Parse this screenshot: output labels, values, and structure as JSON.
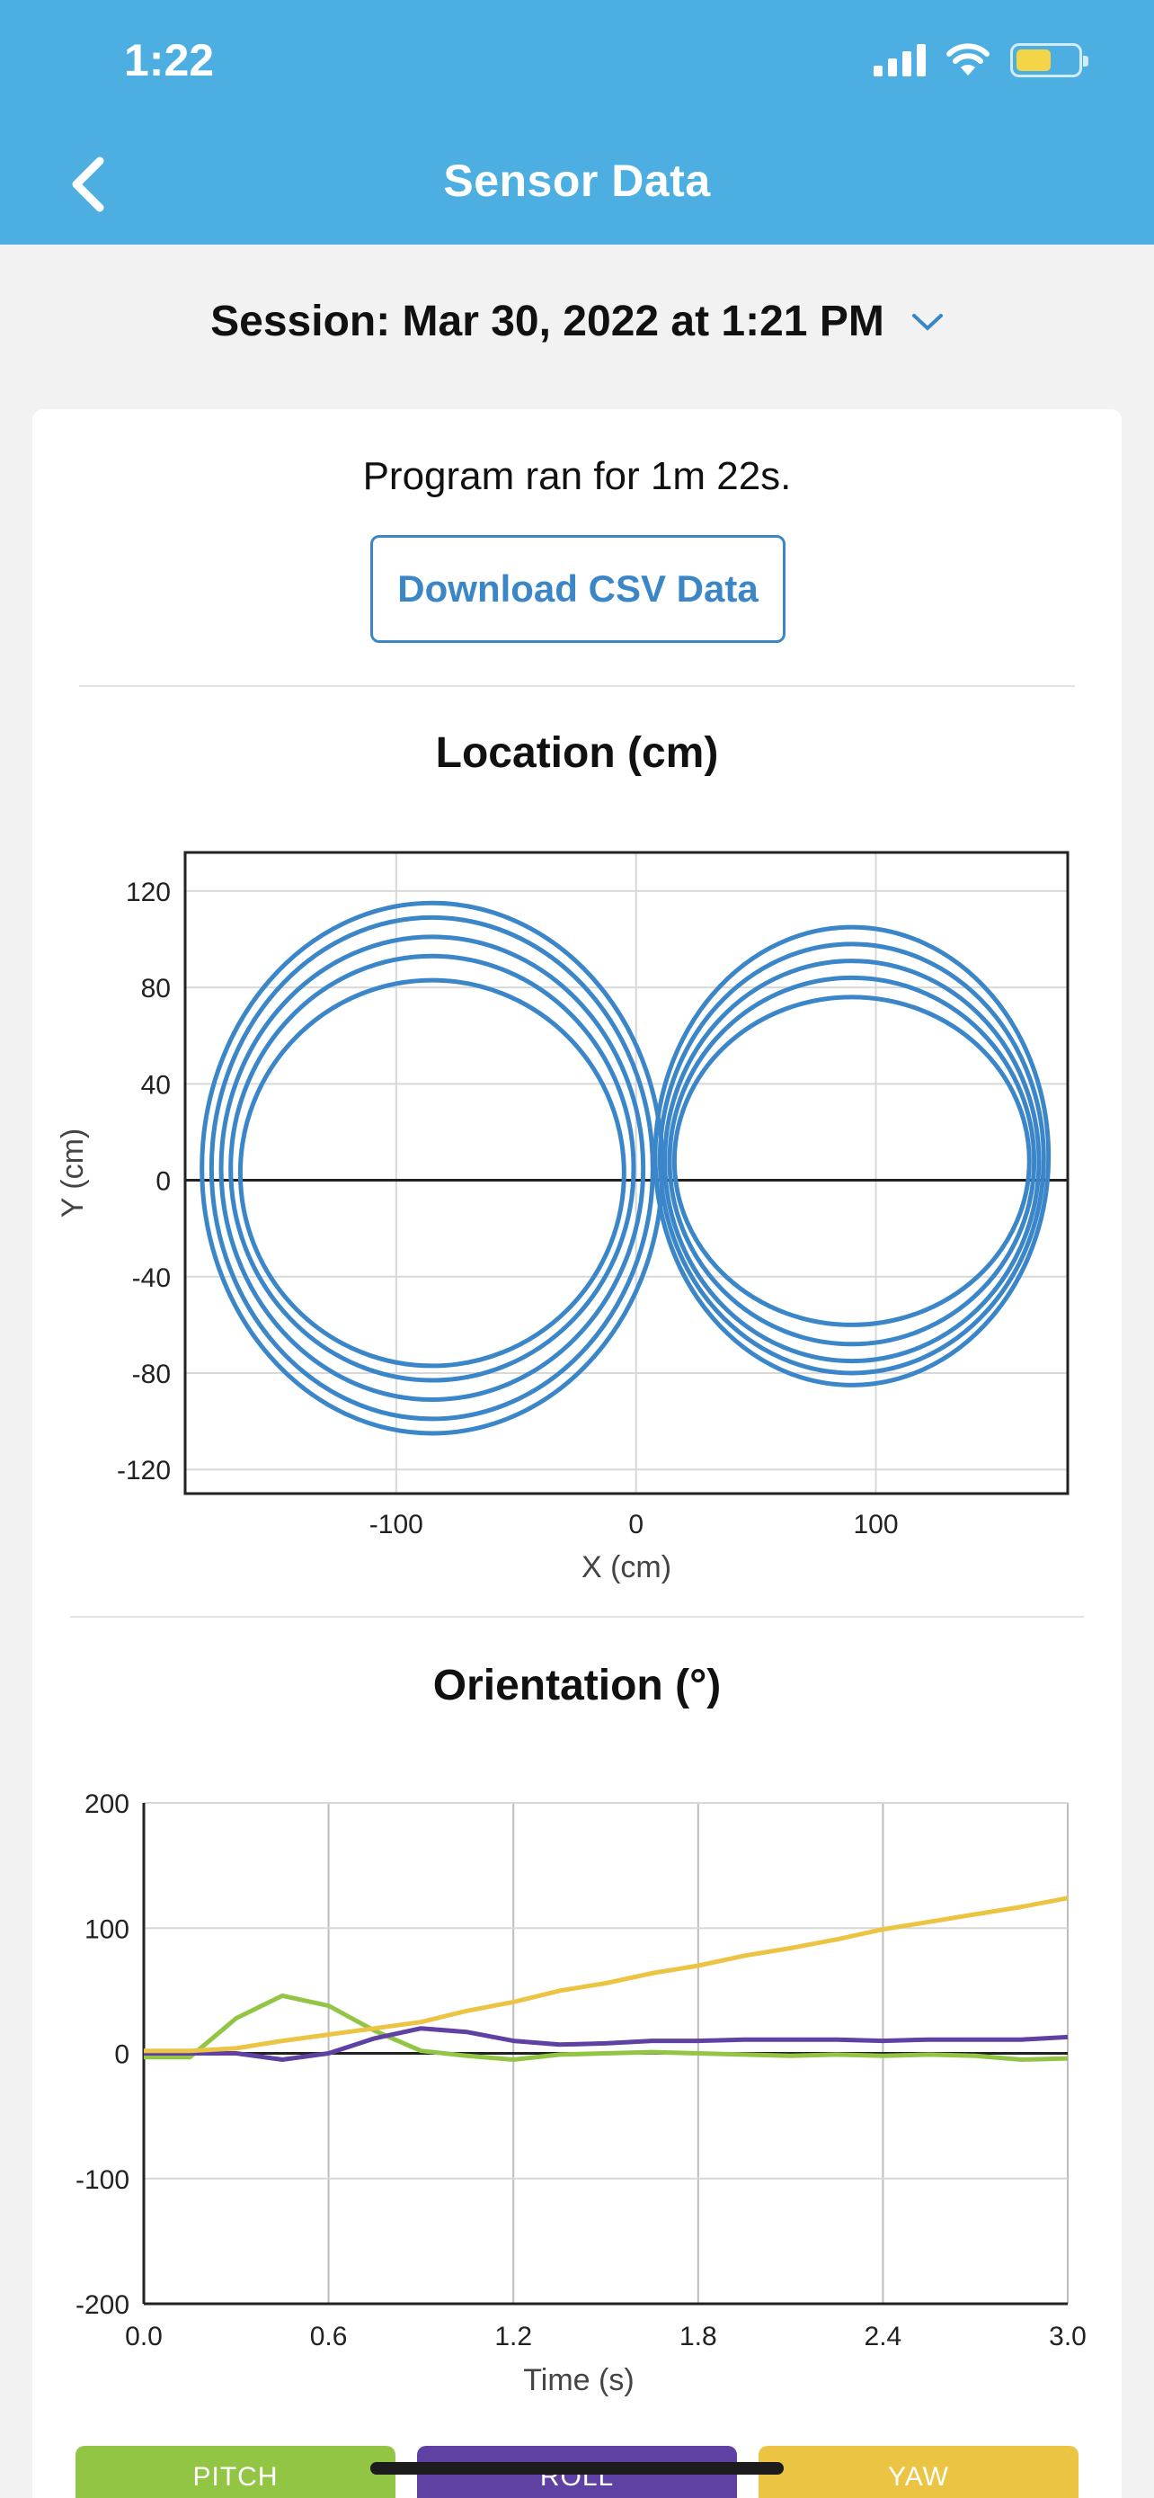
{
  "status_bar": {
    "time": "1:22"
  },
  "header": {
    "title": "Sensor Data"
  },
  "session": {
    "label": "Session: Mar 30, 2022 at 1:21 PM"
  },
  "summary": {
    "ran_text": "Program ran for 1m 22s."
  },
  "download_button": {
    "label": "Download CSV Data"
  },
  "colors": {
    "header": "#4dafe1",
    "location_line": "#3a86c8",
    "pitch": "#93c545",
    "roll": "#5e41a2",
    "yaw": "#ecc444"
  },
  "chart_data": [
    {
      "type": "line",
      "title": "Location (cm)",
      "xlabel": "X (cm)",
      "ylabel": "Y (cm)",
      "xlim": [
        -188,
        180
      ],
      "ylim": [
        -130,
        136
      ],
      "xticks": [
        -100,
        0,
        100
      ],
      "yticks": [
        120,
        80,
        40,
        0,
        -40,
        -80,
        -120
      ],
      "grid": true,
      "series": [
        {
          "cx": -85,
          "cy": 5,
          "rx": 96,
          "ry": 110
        },
        {
          "cx": -85,
          "cy": 5,
          "rx": 92,
          "ry": 104
        },
        {
          "cx": -85,
          "cy": 5,
          "rx": 88,
          "ry": 96
        },
        {
          "cx": -85,
          "cy": 5,
          "rx": 84,
          "ry": 88
        },
        {
          "cx": -85,
          "cy": 3,
          "rx": 80,
          "ry": 80
        },
        {
          "cx": 90,
          "cy": 10,
          "rx": 82,
          "ry": 95
        },
        {
          "cx": 90,
          "cy": 9,
          "rx": 80,
          "ry": 89
        },
        {
          "cx": 90,
          "cy": 8,
          "rx": 78,
          "ry": 83
        },
        {
          "cx": 90,
          "cy": 8,
          "rx": 76,
          "ry": 76
        },
        {
          "cx": 90,
          "cy": 8,
          "rx": 74,
          "ry": 68
        }
      ]
    },
    {
      "type": "line",
      "title": "Orientation (°)",
      "xlabel": "Time (s)",
      "ylabel": "",
      "xlim": [
        0,
        3.0
      ],
      "ylim": [
        -200,
        200
      ],
      "xticks": [
        "0.0",
        "0.6",
        "1.2",
        "1.8",
        "2.4",
        "3.0"
      ],
      "yticks": [
        200,
        100,
        0,
        -100,
        -200
      ],
      "grid": true,
      "x": [
        0,
        0.15,
        0.3,
        0.45,
        0.6,
        0.75,
        0.9,
        1.05,
        1.2,
        1.35,
        1.5,
        1.65,
        1.8,
        1.95,
        2.1,
        2.25,
        2.4,
        2.55,
        2.7,
        2.85,
        3.0
      ],
      "series": [
        {
          "name": "PITCH",
          "values": [
            -3,
            -3,
            28,
            46,
            38,
            18,
            2,
            -2,
            -5,
            -1,
            0,
            1,
            0,
            -1,
            -2,
            -1,
            -2,
            -1,
            -2,
            -5,
            -4
          ]
        },
        {
          "name": "ROLL",
          "values": [
            0,
            0,
            0,
            -5,
            0,
            12,
            20,
            17,
            10,
            7,
            8,
            10,
            10,
            11,
            11,
            11,
            10,
            11,
            11,
            11,
            13
          ]
        },
        {
          "name": "YAW",
          "values": [
            2,
            2,
            4,
            10,
            15,
            20,
            25,
            34,
            41,
            50,
            56,
            64,
            70,
            78,
            84,
            91,
            99,
            105,
            111,
            117,
            124
          ]
        }
      ]
    }
  ],
  "legend": [
    {
      "label": "PITCH"
    },
    {
      "label": "ROLL"
    },
    {
      "label": "YAW"
    }
  ]
}
